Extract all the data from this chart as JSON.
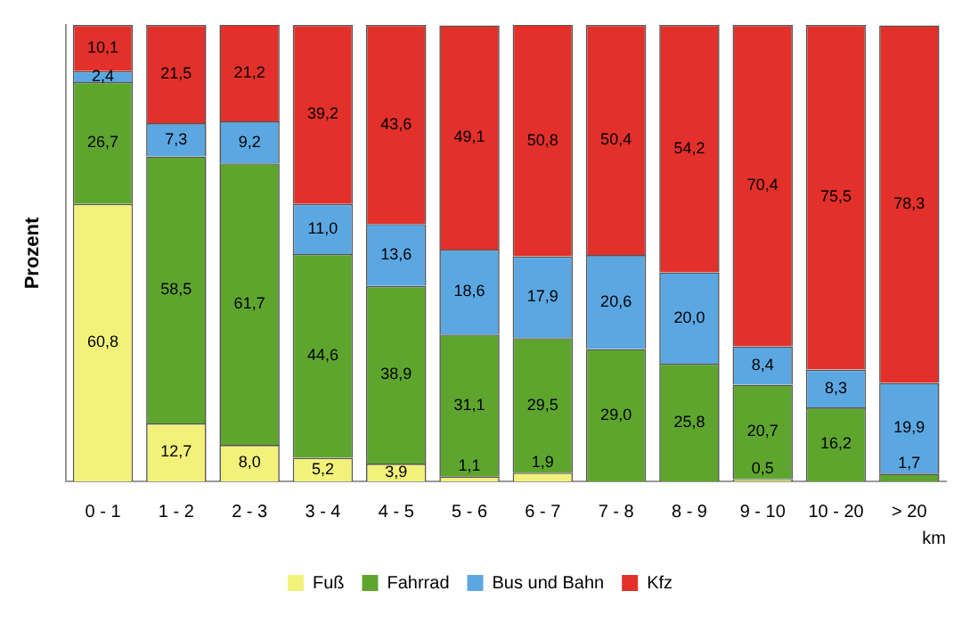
{
  "chart_data": {
    "type": "bar",
    "stacked": true,
    "ylabel": "Prozent",
    "xlabel": "km",
    "ylim": [
      0,
      100
    ],
    "tick_labels": "x",
    "grid": false,
    "legend": "bottom",
    "categories": [
      "0 - 1",
      "1 - 2",
      "2 - 3",
      "3 - 4",
      "4 - 5",
      "5 - 6",
      "6 - 7",
      "7 - 8",
      "8 - 9",
      "9 - 10",
      "10 - 20",
      "> 20"
    ],
    "series": [
      {
        "name": "Fuß",
        "color": "#f2f27a",
        "values": [
          60.8,
          12.7,
          8.0,
          5.2,
          3.9,
          1.1,
          1.9,
          0,
          0,
          0.5,
          0,
          0
        ],
        "value_labels": [
          "60,8",
          "12,7",
          "8,0",
          "5,2",
          "3,9",
          "1,1",
          "1,9",
          null,
          null,
          "0,5",
          null,
          null
        ]
      },
      {
        "name": "Fahrrad",
        "color": "#5ea52e",
        "values": [
          26.7,
          58.5,
          61.7,
          44.6,
          38.9,
          31.1,
          29.5,
          29.0,
          25.8,
          20.7,
          16.2,
          1.7
        ],
        "value_labels": [
          "26,7",
          "58,5",
          "61,7",
          "44,6",
          "38,9",
          "31,1",
          "29,5",
          "29,0",
          "25,8",
          "20,7",
          "16,2",
          "1,7"
        ]
      },
      {
        "name": "Bus und Bahn",
        "color": "#5ba7e2",
        "values": [
          2.4,
          7.3,
          9.2,
          11.0,
          13.6,
          18.6,
          17.9,
          20.6,
          20.0,
          8.4,
          8.3,
          19.9
        ],
        "value_labels": [
          "2,4",
          "7,3",
          "9,2",
          "11,0",
          "13,6",
          "18,6",
          "17,9",
          "20,6",
          "20,0",
          "8,4",
          "8,3",
          "19,9"
        ]
      },
      {
        "name": "Kfz",
        "color": "#e3302b",
        "values": [
          10.1,
          21.5,
          21.2,
          39.2,
          43.6,
          49.1,
          50.8,
          50.4,
          54.2,
          70.4,
          75.5,
          78.3
        ],
        "value_labels": [
          "10,1",
          "21,5",
          "21,2",
          "39,2",
          "43,6",
          "49,1",
          "50,8",
          "50,4",
          "54,2",
          "70,4",
          "75,5",
          "78,3"
        ]
      }
    ]
  }
}
